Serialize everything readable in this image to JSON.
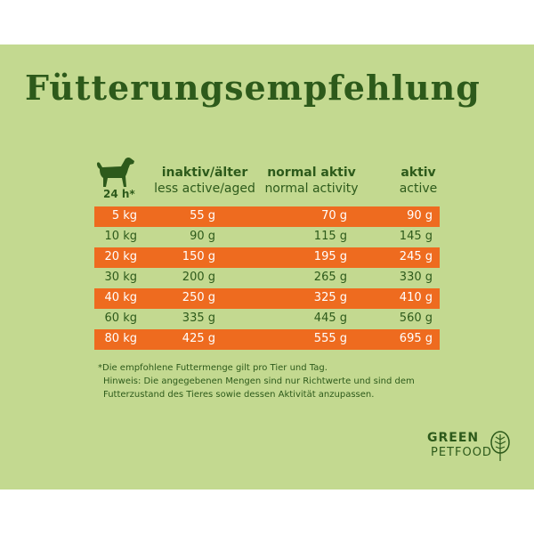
{
  "title": "Fütterungsempfehlung",
  "per_day_label": "24 h*",
  "icons": {
    "dog": "dog-icon",
    "tree": "tree-icon"
  },
  "columns": [
    {
      "de": "inaktiv/älter",
      "en": "less active/aged"
    },
    {
      "de": "normal aktiv",
      "en": "normal activity"
    },
    {
      "de": "aktiv",
      "en": "active"
    }
  ],
  "rows": [
    {
      "weight": "5 kg",
      "inactive": "55 g",
      "normal": "70 g",
      "active": "90 g",
      "highlight": true
    },
    {
      "weight": "10 kg",
      "inactive": "90 g",
      "normal": "115 g",
      "active": "145 g",
      "highlight": false
    },
    {
      "weight": "20 kg",
      "inactive": "150 g",
      "normal": "195 g",
      "active": "245 g",
      "highlight": true
    },
    {
      "weight": "30 kg",
      "inactive": "200 g",
      "normal": "265 g",
      "active": "330 g",
      "highlight": false
    },
    {
      "weight": "40 kg",
      "inactive": "250 g",
      "normal": "325 g",
      "active": "410 g",
      "highlight": true
    },
    {
      "weight": "60 kg",
      "inactive": "335 g",
      "normal": "445 g",
      "active": "560 g",
      "highlight": false
    },
    {
      "weight": "80 kg",
      "inactive": "425 g",
      "normal": "555 g",
      "active": "695 g",
      "highlight": true
    }
  ],
  "notes": {
    "line1": "*Die empfohlene Futtermenge gilt pro Tier und Tag.",
    "line2": "Hinweis: Die angegebenen Mengen sind nur Richtwerte und sind dem",
    "line3": "Futterzustand des Tieres sowie dessen Aktivität anzupassen."
  },
  "logo": {
    "line1": "GREEN",
    "line2": "PETFOOD"
  },
  "colors": {
    "background": "#c3d990",
    "text": "#2d5a1b",
    "highlight": "#ee6b1f"
  }
}
